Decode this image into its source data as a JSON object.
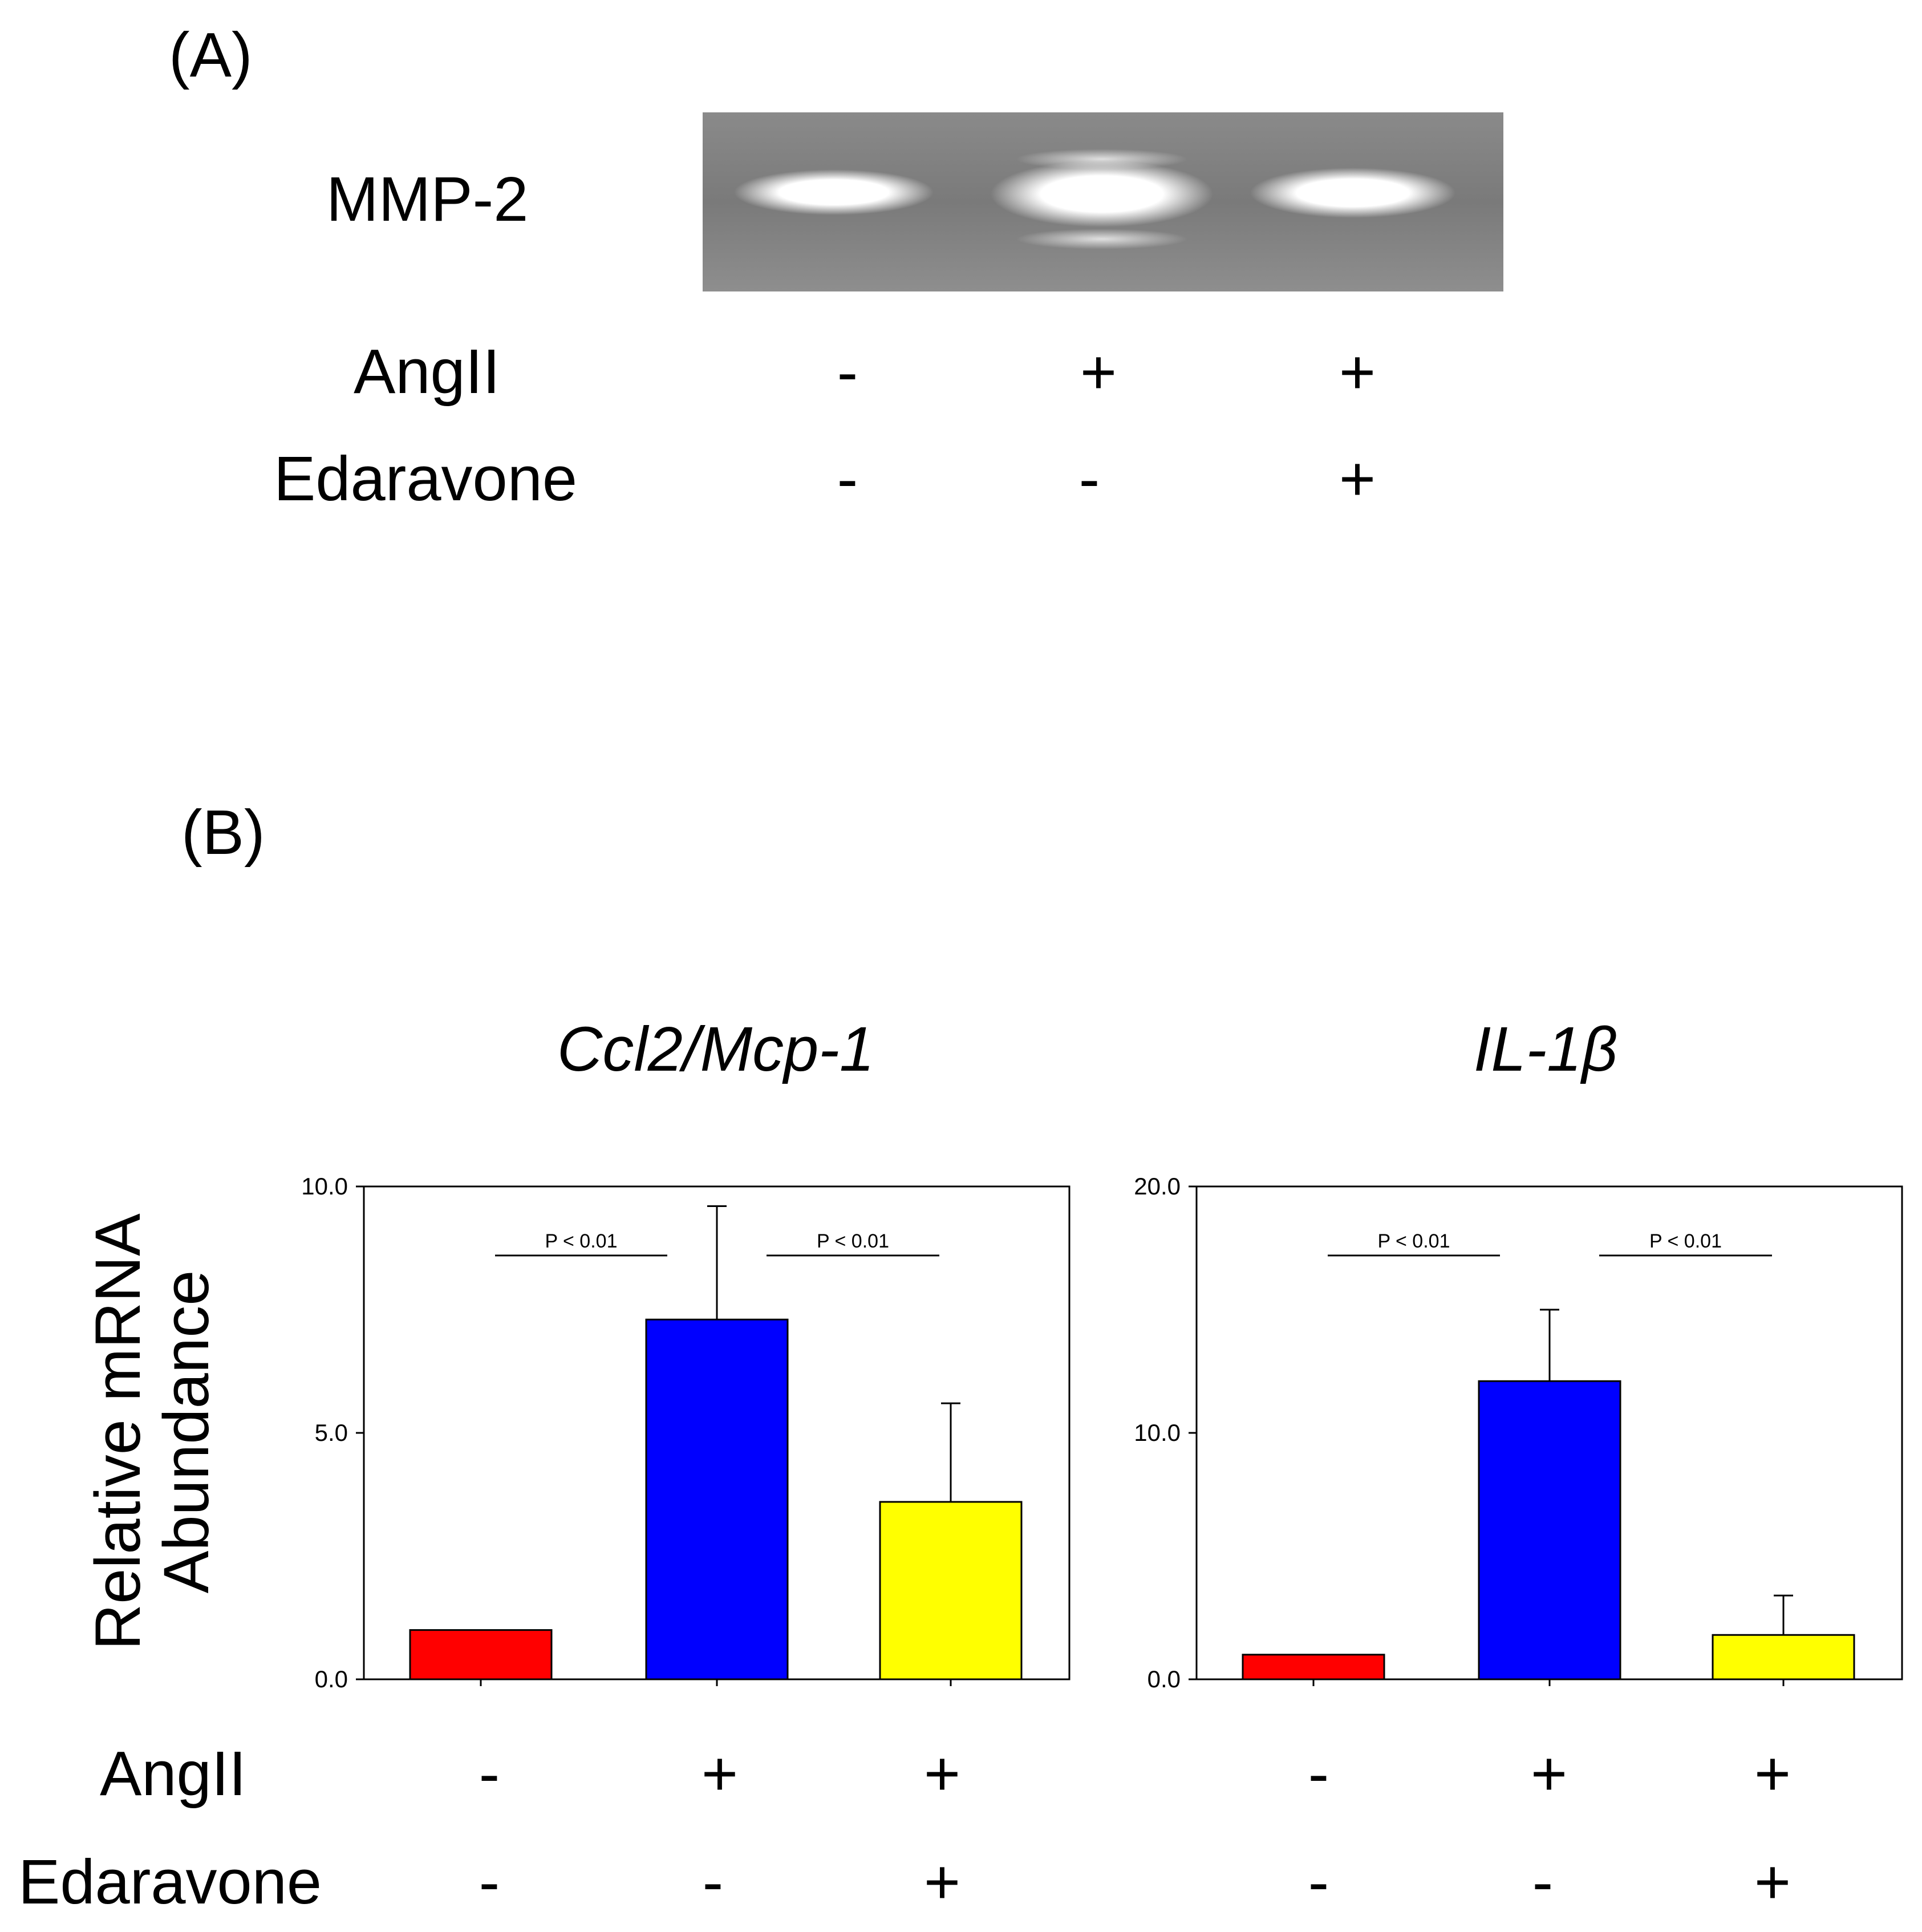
{
  "panel_a": {
    "label": "(A)",
    "band_label": "MMP-2",
    "row_labels": [
      "AngII",
      "Edaravone"
    ],
    "angii": [
      "-",
      "+",
      "+"
    ],
    "edaravone": [
      "-",
      "-",
      "+"
    ]
  },
  "panel_b": {
    "label": "(B)",
    "ylabel_line1": "Relative mRNA",
    "ylabel_line2": "Abundance",
    "row_labels": [
      "AngII",
      "Edaravone"
    ],
    "chart1_angii": [
      "-",
      "+",
      "+"
    ],
    "chart1_edaravone": [
      "-",
      "-",
      "+"
    ],
    "chart2_angii": [
      "-",
      "+",
      "+"
    ],
    "chart2_edaravone": [
      "-",
      "-",
      "+"
    ]
  },
  "colors": {
    "group1": "#ff0000",
    "group2": "#0000ff",
    "group3": "#ffff00"
  },
  "chart_data": [
    {
      "type": "bar",
      "title": "Ccl2/Mcp-1",
      "ylabel": "Relative mRNA Abundance",
      "ylim": [
        0,
        10
      ],
      "yticks": [
        "0.0",
        "5.0",
        "10.0"
      ],
      "categories": [
        "AngII -, Edaravone -",
        "AngII +, Edaravone -",
        "AngII +, Edaravone +"
      ],
      "values": [
        1.0,
        7.3,
        3.6
      ],
      "error": [
        0,
        2.3,
        2.0
      ],
      "annotations": [
        {
          "from": 0,
          "to": 1,
          "y": 8.6,
          "text": "P < 0.01"
        },
        {
          "from": 1,
          "to": 2,
          "y": 8.6,
          "text": "P < 0.01"
        }
      ]
    },
    {
      "type": "bar",
      "title": "IL-1β",
      "ylim": [
        0,
        20
      ],
      "yticks": [
        "0.0",
        "10.0",
        "20.0"
      ],
      "categories": [
        "AngII -, Edaravone -",
        "AngII +, Edaravone -",
        "AngII +, Edaravone +"
      ],
      "values": [
        1.0,
        12.1,
        1.8
      ],
      "error": [
        0,
        2.9,
        1.6
      ],
      "annotations": [
        {
          "from": 0,
          "to": 1,
          "y": 17.2,
          "text": "P < 0.01"
        },
        {
          "from": 1,
          "to": 2,
          "y": 17.2,
          "text": "P < 0.01"
        }
      ]
    }
  ]
}
